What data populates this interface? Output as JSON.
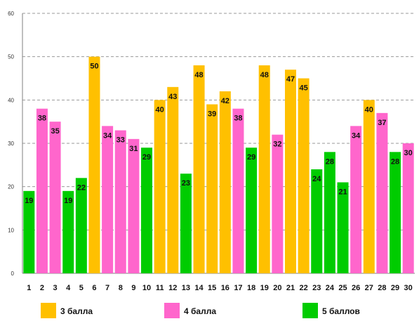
{
  "chart_data": {
    "type": "bar",
    "title": "",
    "xlabel": "",
    "ylabel": "",
    "ylim": [
      0,
      60
    ],
    "yticks": [
      "0",
      "10",
      "20",
      "30",
      "40",
      "50",
      "60"
    ],
    "grid": true,
    "legend_position": "bottom",
    "categories": [
      "1",
      "2",
      "3",
      "4",
      "5",
      "6",
      "7",
      "8",
      "9",
      "10",
      "11",
      "12",
      "13",
      "14",
      "15",
      "16",
      "17",
      "18",
      "19",
      "20",
      "21",
      "22",
      "23",
      "24",
      "25",
      "26",
      "27",
      "28",
      "29",
      "30"
    ],
    "values": [
      19,
      38,
      35,
      19,
      22,
      50,
      34,
      33,
      31,
      29,
      40,
      43,
      23,
      48,
      39,
      42,
      38,
      29,
      48,
      32,
      47,
      45,
      24,
      28,
      21,
      34,
      40,
      37,
      28,
      30
    ],
    "series_index": [
      2,
      1,
      1,
      2,
      2,
      0,
      1,
      1,
      1,
      2,
      0,
      0,
      2,
      0,
      0,
      0,
      1,
      2,
      0,
      1,
      0,
      0,
      2,
      2,
      2,
      1,
      0,
      1,
      2,
      1
    ],
    "legend": [
      {
        "label": "3 балла",
        "color": "#FFC000"
      },
      {
        "label": "4 балла",
        "color": "#FF66CC"
      },
      {
        "label": "5 баллов",
        "color": "#00CC00"
      }
    ]
  }
}
